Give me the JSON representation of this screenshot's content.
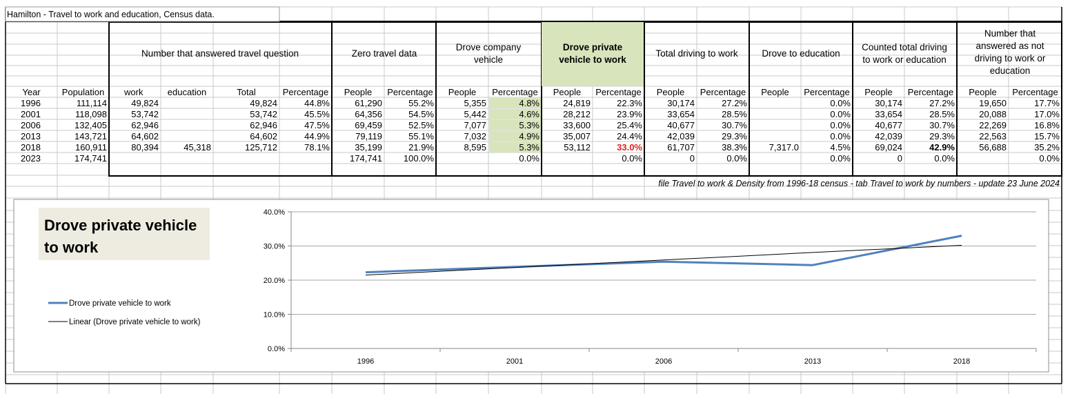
{
  "sheet_title": "Hamilton - Travel to work and education, Census data.",
  "groups": {
    "answered": "Number that answered travel question",
    "zero": "Zero travel data",
    "company": [
      "Drove company",
      "vehicle"
    ],
    "private": [
      "Drove private",
      "vehicle to work"
    ],
    "total_driving": "Total driving to work",
    "education": "Drove to education",
    "counted": [
      "Counted total driving",
      "to work or education"
    ],
    "not_driving": [
      "Number that",
      "answered as not",
      "driving to work or",
      "education"
    ]
  },
  "columns": [
    "Year",
    "Population",
    "work",
    "education",
    "Total",
    "Percentage",
    "People",
    "Percentage",
    "People",
    "Percentage",
    "People",
    "Percentage",
    "People",
    "Percentage",
    "People",
    "Percentage",
    "People",
    "Percentage",
    "People",
    "Percentage"
  ],
  "rows": [
    [
      "1996",
      "111,114",
      "49,824",
      "",
      "49,824",
      "44.8%",
      "61,290",
      "55.2%",
      "5,355",
      "4.8%",
      "24,819",
      "22.3%",
      "30,174",
      "27.2%",
      "",
      "0.0%",
      "30,174",
      "27.2%",
      "19,650",
      "17.7%"
    ],
    [
      "2001",
      "118,098",
      "53,742",
      "",
      "53,742",
      "45.5%",
      "64,356",
      "54.5%",
      "5,442",
      "4.6%",
      "28,212",
      "23.9%",
      "33,654",
      "28.5%",
      "",
      "0.0%",
      "33,654",
      "28.5%",
      "20,088",
      "17.0%"
    ],
    [
      "2006",
      "132,405",
      "62,946",
      "",
      "62,946",
      "47.5%",
      "69,459",
      "52.5%",
      "7,077",
      "5.3%",
      "33,600",
      "25.4%",
      "40,677",
      "30.7%",
      "",
      "0.0%",
      "40,677",
      "30.7%",
      "22,269",
      "16.8%"
    ],
    [
      "2013",
      "143,721",
      "64,602",
      "",
      "64,602",
      "44.9%",
      "79,119",
      "55.1%",
      "7,032",
      "4.9%",
      "35,007",
      "24.4%",
      "42,039",
      "29.3%",
      "",
      "0.0%",
      "42,039",
      "29.3%",
      "22,563",
      "15.7%"
    ],
    [
      "2018",
      "160,911",
      "80,394",
      "45,318",
      "125,712",
      "78.1%",
      "35,199",
      "21.9%",
      "8,595",
      "5.3%",
      "53,112",
      "33.0%",
      "61,707",
      "38.3%",
      "7,317.0",
      "4.5%",
      "69,024",
      "42.9%",
      "56,688",
      "35.2%"
    ],
    [
      "2023",
      "174,741",
      "",
      "",
      "",
      "",
      "174,741",
      "100.0%",
      "",
      "0.0%",
      "",
      "0.0%",
      "0",
      "0.0%",
      "",
      "0.0%",
      "0",
      "0.0%",
      "",
      "0.0%"
    ]
  ],
  "note": "file Travel to work & Density from 1996-18 census - tab Travel to work by numbers - update 23 June 2024",
  "colors": {
    "highlight_green": "#d8e4bc",
    "highlight_red": "#e0201c",
    "series_line": "#4f81bd",
    "trend_line": "#000000",
    "chart_title_box": "#eeece1"
  },
  "chart_data": {
    "type": "line",
    "title": "Drove private vehicle to work",
    "categories": [
      "1996",
      "2001",
      "2006",
      "2013",
      "2018"
    ],
    "series": [
      {
        "name": "Drove private vehicle to work",
        "values": [
          22.3,
          23.9,
          25.4,
          24.4,
          33.0
        ]
      },
      {
        "name": "Linear (Drove private vehicle to work)",
        "values": [
          21.5,
          23.7,
          25.9,
          28.1,
          30.2
        ]
      }
    ],
    "yticks": [
      "0.0%",
      "10.0%",
      "20.0%",
      "30.0%",
      "40.0%"
    ],
    "ylim": [
      0,
      40
    ],
    "grid": true,
    "legend": "left"
  }
}
